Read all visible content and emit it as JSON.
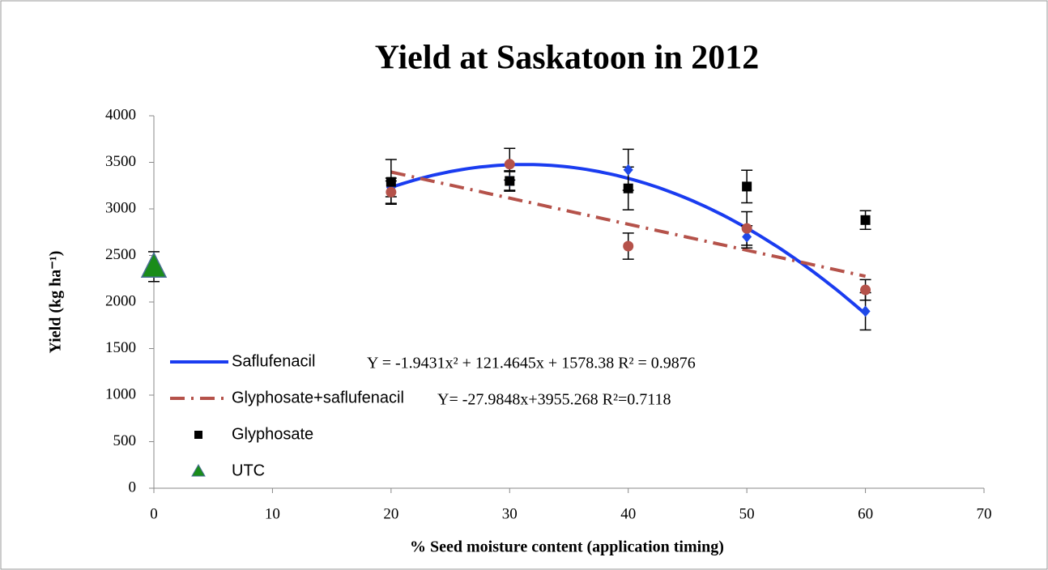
{
  "chart_data": {
    "type": "scatter",
    "title": "Yield at Saskatoon in 2012",
    "x_label": "% Seed moisture content (application timing)",
    "y_label": "Yield  (kg ha⁻¹)",
    "xlim": [
      0,
      70
    ],
    "xticks": [
      0,
      10,
      20,
      30,
      40,
      50,
      60,
      70
    ],
    "ylim": [
      0,
      4000
    ],
    "yticks": [
      0,
      500,
      1000,
      1500,
      2000,
      2500,
      3000,
      3500,
      4000
    ],
    "grid": false,
    "legend": "lower left",
    "series": [
      {
        "name": "Saflufenacil",
        "color": "#1f49e8",
        "marker": "diamond",
        "x": [
          20,
          30,
          40,
          50,
          60
        ],
        "values": [
          3230,
          3300,
          3420,
          2700,
          1900
        ],
        "errors": [
          100,
          100,
          220,
          120,
          200
        ],
        "trendline": {
          "coefficients": [
            -1.9431,
            121.4645,
            1578.38
          ],
          "equation": "Y = -1.9431x² + 121.4645x + 1578.38 R² = 0.9876",
          "color": "#1a3cf0",
          "dash": "solid"
        }
      },
      {
        "name": "Glyphosate+saflufenacil",
        "color": "#b5524a",
        "marker": "circle",
        "x": [
          20,
          30,
          40,
          50,
          60
        ],
        "values": [
          3180,
          3480,
          2600,
          2790,
          2130
        ],
        "errors": [
          120,
          170,
          140,
          180,
          110
        ],
        "trendline": {
          "coefficients": [
            -27.9848,
            3955.268
          ],
          "equation": "Y= -27.9848x+3955.268  R²=0.7118",
          "color": "#b5524a",
          "dash": "dashdot"
        }
      },
      {
        "name": "Glyphosate",
        "color": "#000000",
        "marker": "square",
        "x": [
          20,
          30,
          40,
          50,
          60
        ],
        "values": [
          3290,
          3300,
          3220,
          3240,
          2880
        ],
        "errors": [
          240,
          110,
          230,
          175,
          100
        ]
      },
      {
        "name": "UTC",
        "color": "#1a8c1a",
        "marker": "triangle",
        "x": [
          0
        ],
        "values": [
          2380
        ],
        "errors": [
          160
        ]
      }
    ]
  }
}
